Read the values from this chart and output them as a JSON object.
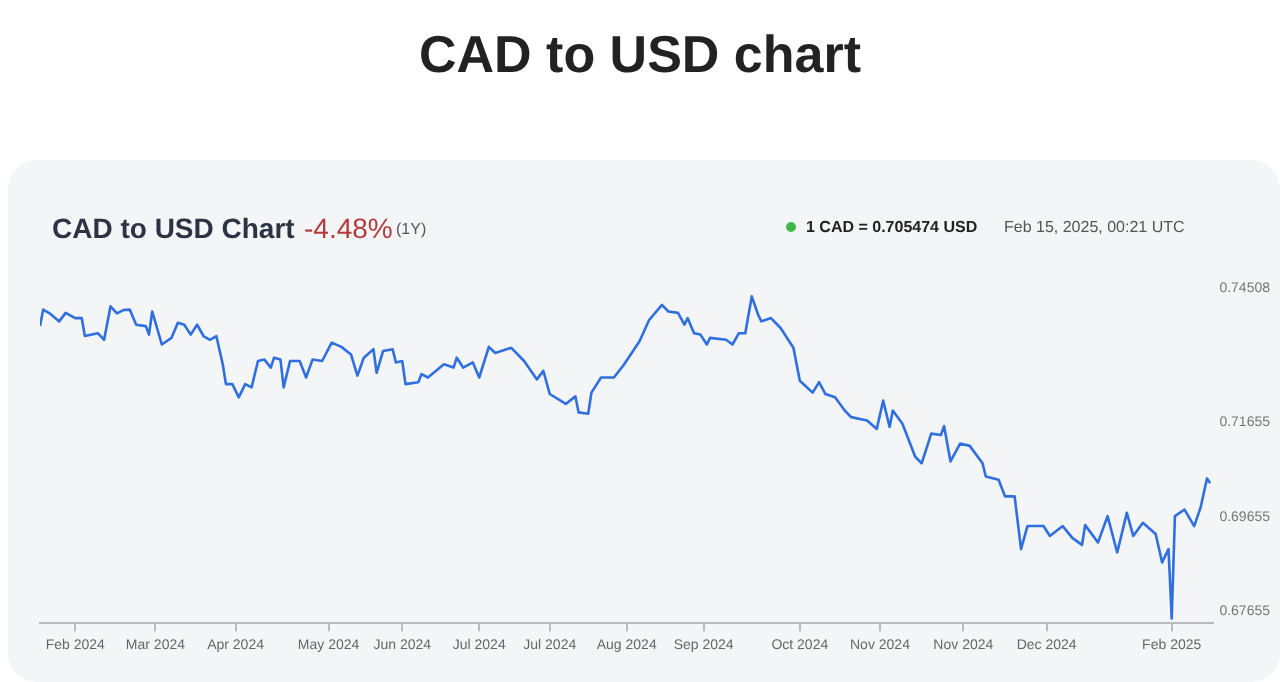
{
  "chart_data": {
    "type": "line",
    "title": "CAD to USD chart",
    "subtitle": "CAD to USD Chart",
    "annotations": [
      "-4.48%",
      "(1Y)",
      "1 CAD = 0.705474 USD",
      "Feb 15, 2025, 00:21 UTC"
    ],
    "x": [
      "2024-02-15",
      "2024-02-16",
      "2024-02-18",
      "2024-02-21",
      "2024-02-23",
      "2024-02-26",
      "2024-02-28",
      "2024-02-29",
      "2024-03-04",
      "2024-03-06",
      "2024-03-08",
      "2024-03-10",
      "2024-03-12",
      "2024-03-14",
      "2024-03-16",
      "2024-03-19",
      "2024-03-20",
      "2024-03-21",
      "2024-03-24",
      "2024-03-27",
      "2024-03-29",
      "2024-03-31",
      "2024-04-02",
      "2024-04-04",
      "2024-04-06",
      "2024-04-08",
      "2024-04-10",
      "2024-04-12",
      "2024-04-13",
      "2024-04-15",
      "2024-04-17",
      "2024-04-19",
      "2024-04-21",
      "2024-04-23",
      "2024-04-25",
      "2024-04-27",
      "2024-04-28",
      "2024-04-30",
      "2024-05-01",
      "2024-05-03",
      "2024-05-06",
      "2024-05-08",
      "2024-05-10",
      "2024-05-13",
      "2024-05-16",
      "2024-05-19",
      "2024-05-22",
      "2024-05-24",
      "2024-05-26",
      "2024-05-29",
      "2024-05-30",
      "2024-06-01",
      "2024-06-04",
      "2024-06-05",
      "2024-06-07",
      "2024-06-08",
      "2024-06-12",
      "2024-06-13",
      "2024-06-15",
      "2024-06-20",
      "2024-06-23",
      "2024-06-24",
      "2024-06-26",
      "2024-06-29",
      "2024-07-01",
      "2024-07-04",
      "2024-07-06",
      "2024-07-11",
      "2024-07-15",
      "2024-07-19",
      "2024-07-21",
      "2024-07-23",
      "2024-07-28",
      "2024-07-31",
      "2024-08-01",
      "2024-08-04",
      "2024-08-05",
      "2024-08-08",
      "2024-08-12",
      "2024-08-15",
      "2024-08-20",
      "2024-08-23",
      "2024-08-27",
      "2024-08-29",
      "2024-09-01",
      "2024-09-03",
      "2024-09-04",
      "2024-09-06",
      "2024-09-08",
      "2024-09-10",
      "2024-09-11",
      "2024-09-16",
      "2024-09-18",
      "2024-09-20",
      "2024-09-22",
      "2024-09-24",
      "2024-09-26",
      "2024-09-27",
      "2024-09-30",
      "2024-10-03",
      "2024-10-07",
      "2024-10-09",
      "2024-10-13",
      "2024-10-15",
      "2024-10-17",
      "2024-10-20",
      "2024-10-23",
      "2024-10-25",
      "2024-10-30",
      "2024-11-02",
      "2024-11-04",
      "2024-11-06",
      "2024-11-07",
      "2024-11-10",
      "2024-11-14",
      "2024-11-16",
      "2024-11-19",
      "2024-11-22",
      "2024-11-23",
      "2024-11-25",
      "2024-11-28",
      "2024-12-01",
      "2024-12-05",
      "2024-12-06",
      "2024-12-10",
      "2024-12-12",
      "2024-12-15",
      "2024-12-17",
      "2024-12-19",
      "2024-12-24",
      "2024-12-26",
      "2024-12-30",
      "2025-01-02",
      "2025-01-05",
      "2025-01-06",
      "2025-01-10",
      "2025-01-13",
      "2025-01-16",
      "2025-01-19",
      "2025-01-21",
      "2025-01-24",
      "2025-01-28",
      "2025-01-30",
      "2025-02-01",
      "2025-02-02",
      "2025-02-03",
      "2025-02-06",
      "2025-02-09",
      "2025-02-11",
      "2025-02-13",
      "2025-02-14"
    ],
    "series": [
      {
        "color": "#2f6fe0",
        "values": [
          0.737,
          0.7405,
          0.7397,
          0.738,
          0.7398,
          0.7387,
          0.7387,
          0.7349,
          0.7355,
          0.7341,
          0.7412,
          0.7397,
          0.7404,
          0.7405,
          0.7373,
          0.737,
          0.7352,
          0.7401,
          0.7331,
          0.7345,
          0.7377,
          0.7373,
          0.7352,
          0.7373,
          0.7349,
          0.7341,
          0.7349,
          0.7289,
          0.7247,
          0.7247,
          0.7219,
          0.7247,
          0.724,
          0.7296,
          0.7299,
          0.7282,
          0.7303,
          0.7299,
          0.724,
          0.7296,
          0.7296,
          0.7261,
          0.7299,
          0.7296,
          0.7335,
          0.7326,
          0.731,
          0.7265,
          0.7303,
          0.7321,
          0.7271,
          0.7317,
          0.7321,
          0.7293,
          0.7296,
          0.7247,
          0.7251,
          0.7268,
          0.7261,
          0.7289,
          0.7282,
          0.7303,
          0.7282,
          0.7293,
          0.7261,
          0.7326,
          0.7313,
          0.7324,
          0.7296,
          0.7257,
          0.7275,
          0.7226,
          0.7205,
          0.7221,
          0.7187,
          0.7184,
          0.7229,
          0.7261,
          0.7261,
          0.7287,
          0.7338,
          0.7383,
          0.7415,
          0.7401,
          0.7398,
          0.7373,
          0.7387,
          0.7355,
          0.7352,
          0.7331,
          0.7345,
          0.7341,
          0.7331,
          0.7355,
          0.7355,
          0.7433,
          0.7394,
          0.738,
          0.7387,
          0.7366,
          0.7324,
          0.7254,
          0.7229,
          0.7251,
          0.7226,
          0.7219,
          0.7191,
          0.7177,
          0.717,
          0.7152,
          0.7212,
          0.7156,
          0.7191,
          0.7163,
          0.7093,
          0.7079,
          0.7142,
          0.7139,
          0.7158,
          0.7083,
          0.7121,
          0.7116,
          0.7079,
          0.7051,
          0.7044,
          0.7009,
          0.7009,
          0.6897,
          0.6946,
          0.6946,
          0.6925,
          0.6946,
          0.6921,
          0.6906,
          0.6948,
          0.6911,
          0.6967,
          0.689,
          0.6974,
          0.6925,
          0.6953,
          0.6929,
          0.6869,
          0.6897,
          0.675,
          0.6967,
          0.6981,
          0.6946,
          0.6985,
          0.7047,
          0.7037
        ]
      }
    ],
    "xlim": [
      "2024-02-15",
      "2025-02-15"
    ],
    "xticks": [
      {
        "value": "2024-02-26",
        "label": "Feb 2024"
      },
      {
        "value": "2024-03-22",
        "label": "Mar 2024"
      },
      {
        "value": "2024-04-16",
        "label": "Apr 2024"
      },
      {
        "value": "2024-05-15",
        "label": "May 2024"
      },
      {
        "value": "2024-06-07",
        "label": "Jun 2024"
      },
      {
        "value": "2024-07-01",
        "label": "Jul 2024"
      },
      {
        "value": "2024-07-23",
        "label": "Jul 2024"
      },
      {
        "value": "2024-08-16",
        "label": "Aug 2024"
      },
      {
        "value": "2024-09-09",
        "label": "Sep 2024"
      },
      {
        "value": "2024-10-09",
        "label": "Oct 2024"
      },
      {
        "value": "2024-11-03",
        "label": "Nov 2024"
      },
      {
        "value": "2024-11-29",
        "label": "Nov 2024"
      },
      {
        "value": "2024-12-25",
        "label": "Dec 2024"
      },
      {
        "value": "2025-02-02",
        "label": "Feb 2025"
      }
    ],
    "ylim": [
      0.674,
      0.74508
    ],
    "yticks": [
      0.74508,
      0.71655,
      0.69655,
      0.67655
    ],
    "grid": false,
    "legend": false,
    "marker": "none",
    "line_style": "solid"
  }
}
